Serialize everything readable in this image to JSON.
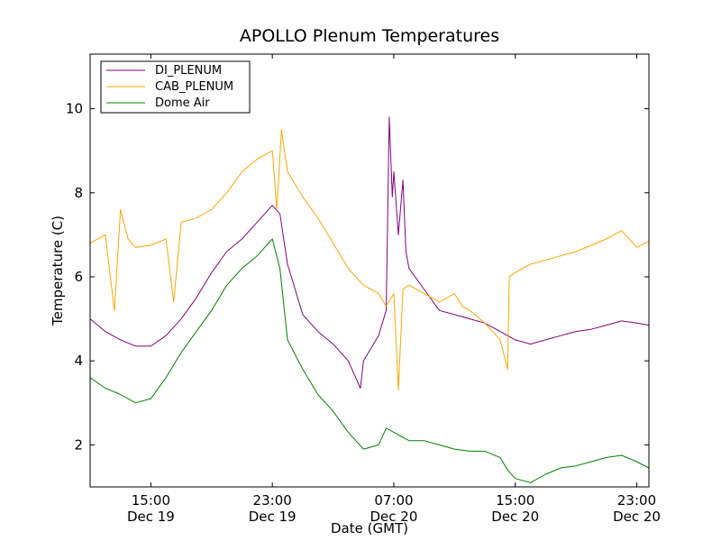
{
  "chart_data": {
    "type": "line",
    "title": "APOLLO Plenum Temperatures",
    "xlabel": "Date (GMT)",
    "ylabel": "Temperature (C)",
    "x_unit": "hours since Dec 19 00:00 GMT",
    "xlim": [
      11.0,
      47.8
    ],
    "ylim": [
      1.0,
      11.3
    ],
    "yticks": [
      2,
      4,
      6,
      8,
      10
    ],
    "xticks": [
      {
        "x": 15,
        "time": "15:00",
        "date": "Dec 19"
      },
      {
        "x": 23,
        "time": "23:00",
        "date": "Dec 19"
      },
      {
        "x": 31,
        "time": "07:00",
        "date": "Dec 20"
      },
      {
        "x": 39,
        "time": "15:00",
        "date": "Dec 20"
      },
      {
        "x": 47,
        "time": "23:00",
        "date": "Dec 20"
      }
    ],
    "legend_position": "top-left",
    "series": [
      {
        "name": "DI_PLENUM",
        "color": "#800080",
        "points": [
          [
            11.0,
            5.0
          ],
          [
            12.0,
            4.7
          ],
          [
            13.0,
            4.5
          ],
          [
            14.0,
            4.35
          ],
          [
            15.0,
            4.35
          ],
          [
            16.0,
            4.6
          ],
          [
            17.0,
            5.0
          ],
          [
            18.0,
            5.5
          ],
          [
            19.0,
            6.1
          ],
          [
            20.0,
            6.6
          ],
          [
            21.0,
            6.9
          ],
          [
            22.0,
            7.3
          ],
          [
            23.0,
            7.7
          ],
          [
            23.5,
            7.5
          ],
          [
            24.0,
            6.3
          ],
          [
            25.0,
            5.1
          ],
          [
            26.0,
            4.7
          ],
          [
            27.0,
            4.4
          ],
          [
            28.0,
            4.0
          ],
          [
            28.8,
            3.35
          ],
          [
            29.0,
            4.0
          ],
          [
            29.5,
            4.3
          ],
          [
            30.0,
            4.6
          ],
          [
            30.5,
            5.2
          ],
          [
            30.7,
            9.8
          ],
          [
            30.9,
            7.9
          ],
          [
            31.0,
            8.5
          ],
          [
            31.3,
            7.0
          ],
          [
            31.6,
            8.3
          ],
          [
            31.8,
            6.6
          ],
          [
            32.0,
            6.2
          ],
          [
            33.0,
            5.7
          ],
          [
            34.0,
            5.2
          ],
          [
            35.0,
            5.1
          ],
          [
            36.0,
            5.0
          ],
          [
            37.0,
            4.9
          ],
          [
            38.0,
            4.7
          ],
          [
            39.0,
            4.5
          ],
          [
            40.0,
            4.4
          ],
          [
            41.0,
            4.5
          ],
          [
            42.0,
            4.6
          ],
          [
            43.0,
            4.7
          ],
          [
            44.0,
            4.75
          ],
          [
            45.0,
            4.85
          ],
          [
            46.0,
            4.95
          ],
          [
            47.0,
            4.9
          ],
          [
            47.8,
            4.85
          ]
        ]
      },
      {
        "name": "CAB_PLENUM",
        "color": "#ffa500",
        "points": [
          [
            11.0,
            6.8
          ],
          [
            12.0,
            7.0
          ],
          [
            12.6,
            5.2
          ],
          [
            13.0,
            7.6
          ],
          [
            13.5,
            6.9
          ],
          [
            14.0,
            6.7
          ],
          [
            15.0,
            6.75
          ],
          [
            16.0,
            6.9
          ],
          [
            16.5,
            5.4
          ],
          [
            17.0,
            7.3
          ],
          [
            18.0,
            7.4
          ],
          [
            19.0,
            7.6
          ],
          [
            20.0,
            8.0
          ],
          [
            21.0,
            8.5
          ],
          [
            22.0,
            8.8
          ],
          [
            23.0,
            9.0
          ],
          [
            23.3,
            7.6
          ],
          [
            23.6,
            9.5
          ],
          [
            24.0,
            8.5
          ],
          [
            25.0,
            7.9
          ],
          [
            26.0,
            7.4
          ],
          [
            27.0,
            6.8
          ],
          [
            28.0,
            6.2
          ],
          [
            29.0,
            5.8
          ],
          [
            30.0,
            5.6
          ],
          [
            30.5,
            5.3
          ],
          [
            31.0,
            5.6
          ],
          [
            31.3,
            3.3
          ],
          [
            31.6,
            5.7
          ],
          [
            32.0,
            5.8
          ],
          [
            33.0,
            5.6
          ],
          [
            34.0,
            5.4
          ],
          [
            35.0,
            5.6
          ],
          [
            35.5,
            5.3
          ],
          [
            36.0,
            5.2
          ],
          [
            37.0,
            4.9
          ],
          [
            38.0,
            4.5
          ],
          [
            38.5,
            3.8
          ],
          [
            38.6,
            6.0
          ],
          [
            39.0,
            6.1
          ],
          [
            40.0,
            6.3
          ],
          [
            41.0,
            6.4
          ],
          [
            42.0,
            6.5
          ],
          [
            43.0,
            6.6
          ],
          [
            44.0,
            6.75
          ],
          [
            45.0,
            6.9
          ],
          [
            46.0,
            7.1
          ],
          [
            46.5,
            6.9
          ],
          [
            47.0,
            6.7
          ],
          [
            47.8,
            6.85
          ]
        ]
      },
      {
        "name": "Dome Air",
        "color": "#008000",
        "points": [
          [
            11.0,
            3.6
          ],
          [
            12.0,
            3.35
          ],
          [
            13.0,
            3.2
          ],
          [
            14.0,
            3.0
          ],
          [
            15.0,
            3.1
          ],
          [
            16.0,
            3.6
          ],
          [
            17.0,
            4.2
          ],
          [
            18.0,
            4.7
          ],
          [
            19.0,
            5.2
          ],
          [
            20.0,
            5.8
          ],
          [
            21.0,
            6.2
          ],
          [
            22.0,
            6.5
          ],
          [
            23.0,
            6.9
          ],
          [
            23.5,
            6.2
          ],
          [
            24.0,
            4.5
          ],
          [
            25.0,
            3.8
          ],
          [
            26.0,
            3.2
          ],
          [
            27.0,
            2.8
          ],
          [
            28.0,
            2.3
          ],
          [
            29.0,
            1.9
          ],
          [
            30.0,
            2.0
          ],
          [
            30.5,
            2.4
          ],
          [
            31.0,
            2.3
          ],
          [
            32.0,
            2.1
          ],
          [
            33.0,
            2.1
          ],
          [
            34.0,
            2.0
          ],
          [
            35.0,
            1.9
          ],
          [
            36.0,
            1.85
          ],
          [
            37.0,
            1.85
          ],
          [
            38.0,
            1.7
          ],
          [
            38.5,
            1.4
          ],
          [
            39.0,
            1.2
          ],
          [
            40.0,
            1.1
          ],
          [
            41.0,
            1.3
          ],
          [
            42.0,
            1.45
          ],
          [
            43.0,
            1.5
          ],
          [
            44.0,
            1.6
          ],
          [
            45.0,
            1.7
          ],
          [
            46.0,
            1.75
          ],
          [
            47.0,
            1.6
          ],
          [
            47.8,
            1.45
          ]
        ]
      }
    ]
  }
}
